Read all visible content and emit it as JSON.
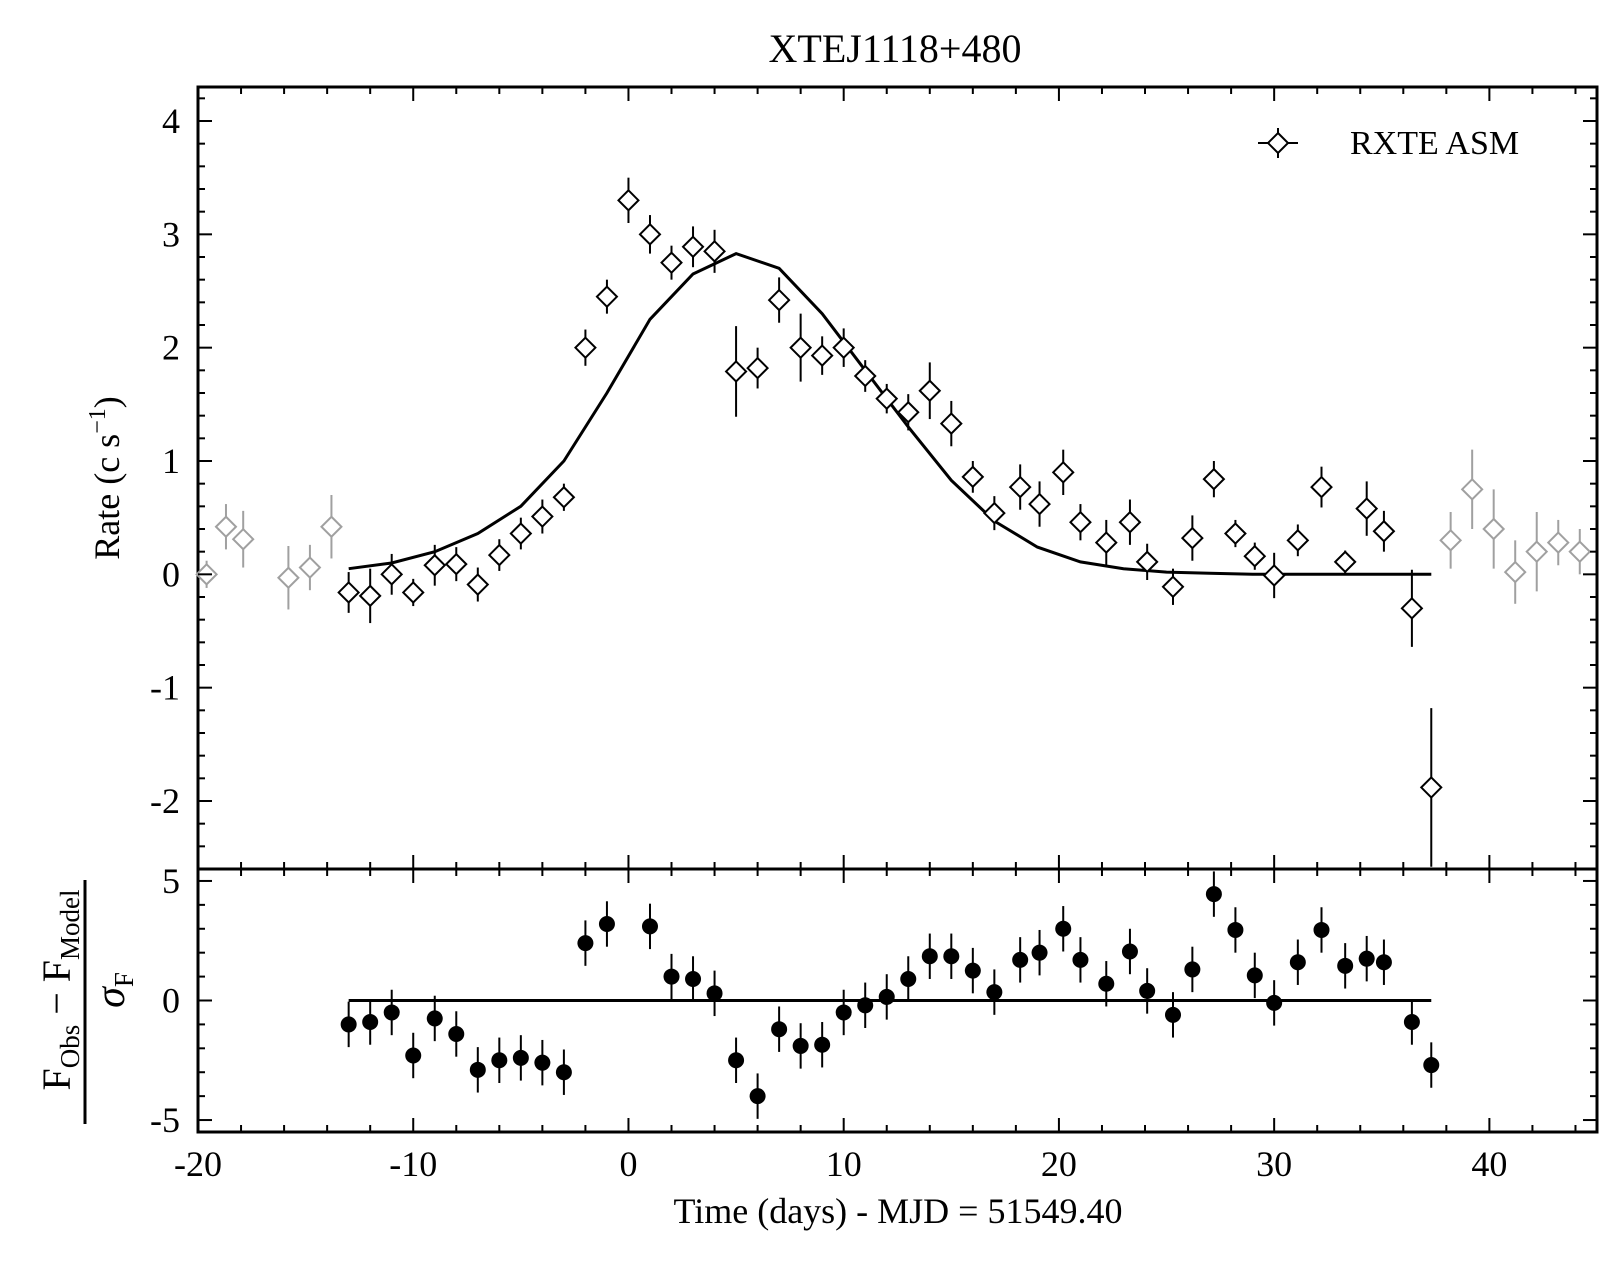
{
  "chart_data": [
    {
      "type": "scatter",
      "panel": "light-curve",
      "title": "XTEJ1118+480",
      "xlabel": "Time (days) - MJD = 51549.40",
      "ylabel": "Rate (c s",
      "ylabel_sup": "−1",
      "ylabel_close": ")",
      "xlim": [
        -20,
        45
      ],
      "ylim": [
        -2.6,
        4.3
      ],
      "xticks": [
        -20,
        -10,
        0,
        10,
        20,
        30,
        40
      ],
      "xtick_labels": [
        "-20",
        "-10",
        "0",
        "10",
        "20",
        "30",
        "40"
      ],
      "yticks": [
        -2,
        -1,
        0,
        1,
        2,
        3,
        4
      ],
      "ytick_labels": [
        "-2",
        "-1",
        "0",
        "1",
        "2",
        "3",
        "4"
      ],
      "legend": {
        "label": "RXTE ASM",
        "placement": "top-right"
      },
      "colors": {
        "main": "#000000",
        "excluded": "#a0a0a0"
      },
      "series": [
        {
          "name": "RXTE ASM",
          "role": "fitted",
          "x": [
            -13,
            -12,
            -11,
            -10,
            -9,
            -8,
            -7,
            -6,
            -5,
            -4,
            -3,
            -2,
            -1,
            0,
            1,
            2,
            3,
            4,
            5,
            6,
            7,
            8,
            9,
            10,
            11,
            12,
            13,
            14,
            15,
            16,
            17,
            18.2,
            19.1,
            20.2,
            21,
            22.2,
            23.3,
            24.1,
            25.3,
            26.2,
            27.2,
            28.2,
            29.1,
            30,
            31.1,
            32.2,
            33.3,
            34.3,
            35.1,
            36.4,
            37.3
          ],
          "y": [
            -0.16,
            -0.19,
            0.0,
            -0.16,
            0.08,
            0.09,
            -0.09,
            0.17,
            0.36,
            0.51,
            0.68,
            2.0,
            2.45,
            3.3,
            3.0,
            2.75,
            2.89,
            2.85,
            1.79,
            1.82,
            2.42,
            2.0,
            1.93,
            2.0,
            1.75,
            1.55,
            1.43,
            1.62,
            1.33,
            0.86,
            0.54,
            0.77,
            0.62,
            0.9,
            0.46,
            0.28,
            0.46,
            0.11,
            -0.11,
            0.32,
            0.84,
            0.36,
            0.16,
            -0.01,
            0.3,
            0.77,
            0.11,
            0.58,
            0.38,
            -0.3,
            -1.88
          ],
          "yerr": [
            0.18,
            0.24,
            0.18,
            0.12,
            0.18,
            0.15,
            0.15,
            0.14,
            0.14,
            0.15,
            0.12,
            0.16,
            0.15,
            0.2,
            0.17,
            0.15,
            0.18,
            0.19,
            0.4,
            0.18,
            0.2,
            0.3,
            0.17,
            0.17,
            0.14,
            0.13,
            0.16,
            0.25,
            0.2,
            0.14,
            0.15,
            0.2,
            0.2,
            0.2,
            0.16,
            0.2,
            0.2,
            0.16,
            0.16,
            0.2,
            0.16,
            0.12,
            0.12,
            0.2,
            0.14,
            0.18,
            0.1,
            0.24,
            0.18,
            0.34,
            0.7
          ]
        },
        {
          "role": "excluded",
          "x": [
            -19.6,
            -18.7,
            -17.9,
            -15.8,
            -14.8,
            -13.8,
            38.2,
            39.2,
            40.2,
            41.2,
            42.2,
            43.2,
            44.2
          ],
          "y": [
            0.0,
            0.42,
            0.31,
            -0.03,
            0.06,
            0.42,
            0.3,
            0.75,
            0.4,
            0.02,
            0.2,
            0.28,
            0.2
          ],
          "yerr": [
            0.12,
            0.2,
            0.25,
            0.28,
            0.2,
            0.28,
            0.25,
            0.35,
            0.35,
            0.28,
            0.35,
            0.2,
            0.2
          ]
        },
        {
          "role": "model",
          "type": "line",
          "x": [
            -13,
            -11,
            -9,
            -7,
            -5,
            -3,
            -1,
            1,
            3,
            5,
            7,
            9,
            11,
            13,
            15,
            17,
            19,
            21,
            23,
            25,
            27,
            29,
            31,
            33,
            35,
            37.3
          ],
          "y": [
            0.05,
            0.1,
            0.2,
            0.36,
            0.6,
            1.0,
            1.6,
            2.25,
            2.65,
            2.83,
            2.7,
            2.3,
            1.8,
            1.3,
            0.83,
            0.47,
            0.24,
            0.11,
            0.05,
            0.02,
            0.01,
            0.0,
            0.0,
            0.0,
            0.0,
            0.0
          ]
        }
      ]
    },
    {
      "type": "scatter",
      "panel": "residuals",
      "ylabel": "F_Obs − F_Model / σ_F",
      "ylabel_num_main": "F",
      "ylabel_num_sub1": "Obs",
      "ylabel_num_minus": " − F",
      "ylabel_num_sub2": "Model",
      "ylabel_den_main": "σ",
      "ylabel_den_sub": "F",
      "xlim": [
        -20,
        45
      ],
      "ylim": [
        -5.5,
        5.5
      ],
      "yticks": [
        -5,
        0,
        5
      ],
      "ytick_labels": [
        "-5",
        "0",
        "5"
      ],
      "series": [
        {
          "role": "residuals",
          "x": [
            -13,
            -12,
            -11,
            -10,
            -9,
            -8,
            -7,
            -6,
            -5,
            -4,
            -3,
            -2,
            -1,
            1,
            2,
            3,
            4,
            5,
            6,
            7,
            8,
            9,
            10,
            11,
            12,
            13,
            14,
            15,
            16,
            17,
            18.2,
            19.1,
            20.2,
            21,
            22.2,
            23.3,
            24.1,
            25.3,
            26.2,
            27.2,
            28.2,
            29.1,
            30,
            31.1,
            32.2,
            33.3,
            34.3,
            35.1,
            36.4,
            37.3
          ],
          "y": [
            -1.0,
            -0.9,
            -0.5,
            -2.3,
            -0.75,
            -1.4,
            -2.9,
            -2.5,
            -2.4,
            -2.6,
            -3.0,
            2.4,
            3.2,
            3.1,
            1.0,
            0.9,
            0.3,
            -2.5,
            -4.0,
            -1.2,
            -1.9,
            -1.85,
            -0.5,
            -0.2,
            0.15,
            0.9,
            1.85,
            1.85,
            1.25,
            0.35,
            1.7,
            2.0,
            3.0,
            1.7,
            0.7,
            2.05,
            0.4,
            -0.6,
            1.3,
            4.45,
            2.95,
            1.05,
            -0.1,
            1.6,
            2.95,
            1.45,
            1.75,
            1.6,
            -0.9,
            -2.7
          ],
          "yerr": [
            0.95,
            0.95,
            0.95,
            0.95,
            0.95,
            0.95,
            0.95,
            0.95,
            0.95,
            0.95,
            0.95,
            0.95,
            0.95,
            0.95,
            0.95,
            0.95,
            0.95,
            0.95,
            0.95,
            0.95,
            0.95,
            0.95,
            0.95,
            0.95,
            0.95,
            0.95,
            0.95,
            0.95,
            0.95,
            0.95,
            0.95,
            0.95,
            0.95,
            0.95,
            0.95,
            0.95,
            0.95,
            0.95,
            0.95,
            0.95,
            0.95,
            0.95,
            0.95,
            0.95,
            0.95,
            0.95,
            0.95,
            0.95,
            0.95,
            0.95
          ]
        },
        {
          "role": "zero-line",
          "type": "line",
          "x": [
            -13,
            37.3
          ],
          "y": [
            0,
            0
          ]
        }
      ]
    }
  ]
}
